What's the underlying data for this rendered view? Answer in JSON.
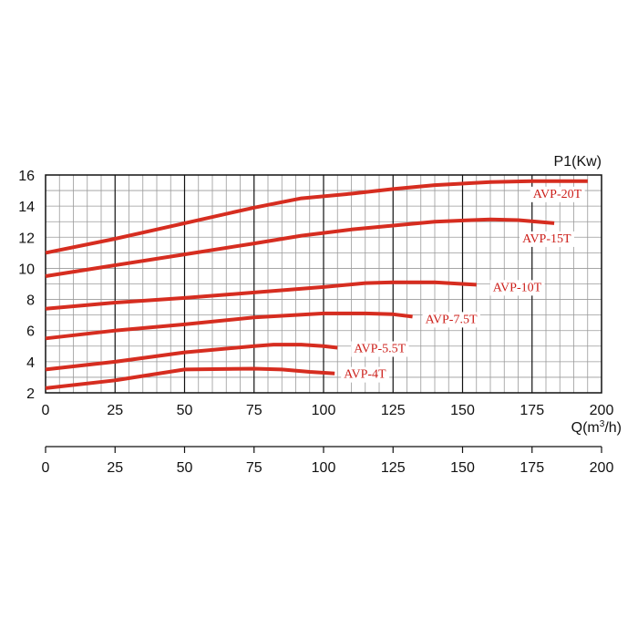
{
  "chart_data": {
    "type": "line",
    "xlabel": "Q(m³/h)",
    "xlabel_parts": {
      "main": "Q(m",
      "sup": "3",
      "tail": "/h)"
    },
    "ylabel": "P1(Kw)",
    "xlim": [
      0,
      200
    ],
    "ylim": [
      2,
      16
    ],
    "x_ticks": [
      "0",
      "25",
      "50",
      "75",
      "100",
      "125",
      "150",
      "175",
      "200"
    ],
    "y_ticks": [
      "2",
      "4",
      "6",
      "8",
      "10",
      "12",
      "14",
      "16"
    ],
    "grid": true,
    "line_color": "#d62d20",
    "label_color": "#cc1f1a",
    "series": [
      {
        "name": "AVP-20T",
        "x": [
          0,
          25,
          50,
          75,
          92,
          110,
          125,
          140,
          160,
          175,
          195
        ],
        "y": [
          11.0,
          11.9,
          12.9,
          13.9,
          14.5,
          14.8,
          15.1,
          15.35,
          15.55,
          15.6,
          15.6
        ]
      },
      {
        "name": "AVP-15T",
        "x": [
          0,
          25,
          50,
          75,
          92,
          110,
          125,
          140,
          160,
          170,
          183
        ],
        "y": [
          9.5,
          10.2,
          10.9,
          11.6,
          12.1,
          12.5,
          12.75,
          13.0,
          13.15,
          13.1,
          12.9
        ]
      },
      {
        "name": "AVP-10T",
        "x": [
          0,
          25,
          50,
          75,
          100,
          115,
          125,
          140,
          155
        ],
        "y": [
          7.4,
          7.8,
          8.1,
          8.45,
          8.8,
          9.05,
          9.1,
          9.1,
          8.95
        ]
      },
      {
        "name": "AVP-7.5T",
        "x": [
          0,
          25,
          50,
          75,
          100,
          115,
          125,
          132
        ],
        "y": [
          5.5,
          6.0,
          6.4,
          6.85,
          7.1,
          7.1,
          7.05,
          6.9
        ]
      },
      {
        "name": "AVP-5.5T",
        "x": [
          0,
          25,
          50,
          75,
          82,
          92,
          100,
          105
        ],
        "y": [
          3.5,
          4.0,
          4.6,
          5.0,
          5.1,
          5.1,
          5.0,
          4.9
        ]
      },
      {
        "name": "AVP-4T",
        "x": [
          0,
          25,
          50,
          75,
          85,
          95,
          104
        ],
        "y": [
          2.3,
          2.8,
          3.5,
          3.55,
          3.5,
          3.35,
          3.25
        ]
      }
    ]
  }
}
